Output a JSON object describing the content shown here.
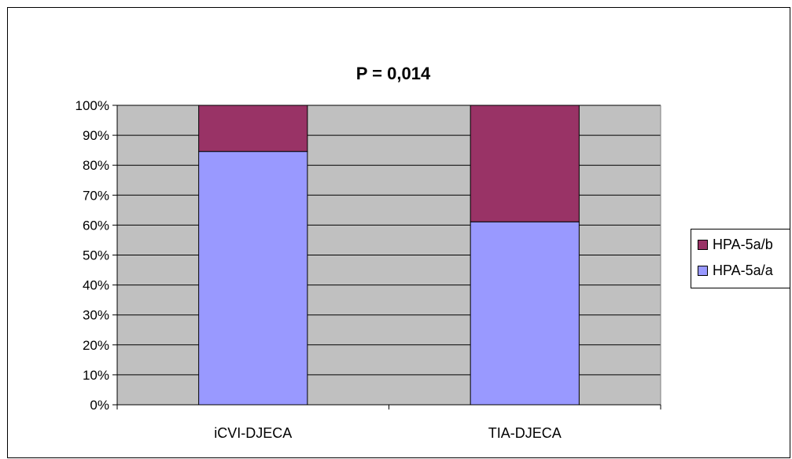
{
  "chart_data": {
    "type": "bar",
    "stacked": "percent",
    "title": "P = 0,014",
    "categories": [
      "iCVI-DJECA",
      "TIA-DJECA"
    ],
    "series": [
      {
        "name": "HPA-5a/a",
        "color": "#9999FF",
        "values": [
          84.6,
          61.1
        ]
      },
      {
        "name": "HPA-5a/b",
        "color": "#993366",
        "values": [
          15.4,
          38.9
        ]
      }
    ],
    "ylim": [
      0,
      100
    ],
    "yticks": [
      "0%",
      "10%",
      "20%",
      "30%",
      "40%",
      "50%",
      "60%",
      "70%",
      "80%",
      "90%",
      "100%"
    ],
    "grid": true,
    "plot_background": "#C0C0C0",
    "legend_position": "right"
  }
}
